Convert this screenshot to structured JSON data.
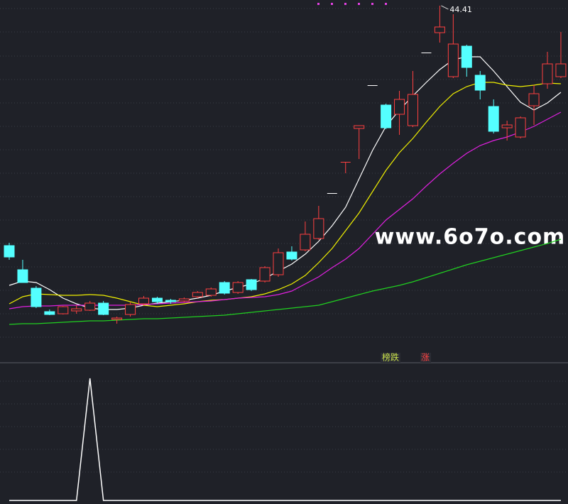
{
  "chart_data": [
    {
      "type": "candlestick",
      "high_label": "44.41",
      "watermark": "www.6o7o.com",
      "annotations": [
        "榜跌",
        "涨"
      ],
      "color_up": "#ff4040",
      "color_down": "#54ffff",
      "ylim": [
        19.31,
        44.81
      ],
      "open": [
        27.51,
        25.81,
        24.51,
        22.86,
        22.71,
        22.91,
        22.96,
        23.46,
        22.31,
        22.66,
        23.41,
        23.81,
        23.66,
        23.61,
        23.91,
        24.01,
        24.91,
        24.21,
        25.11,
        25.01,
        25.46,
        27.06,
        27.21,
        28.01,
        31.21,
        33.41,
        35.76,
        38.81,
        37.41,
        36.76,
        35.96,
        41.11,
        42.51,
        39.41,
        41.56,
        39.51,
        37.31,
        35.81,
        35.16,
        37.36,
        38.91,
        39.41
      ],
      "high": [
        27.71,
        26.51,
        24.66,
        23.01,
        23.26,
        23.31,
        23.61,
        23.61,
        22.51,
        23.51,
        23.96,
        23.91,
        23.76,
        23.86,
        24.31,
        24.56,
        25.01,
        25.01,
        25.16,
        26.06,
        27.31,
        27.46,
        29.21,
        30.31,
        31.21,
        33.41,
        35.96,
        38.81,
        37.51,
        38.41,
        39.81,
        41.11,
        44.41,
        43.81,
        41.66,
        39.81,
        37.81,
        36.31,
        36.61,
        38.81,
        41.16,
        42.56
      ],
      "low": [
        26.51,
        24.91,
        23.11,
        22.61,
        22.66,
        22.71,
        22.91,
        22.61,
        22.01,
        22.51,
        23.31,
        23.41,
        23.41,
        23.51,
        23.81,
        23.91,
        24.06,
        24.11,
        24.31,
        24.91,
        25.31,
        26.46,
        27.11,
        27.91,
        31.21,
        32.61,
        33.61,
        38.81,
        35.71,
        35.31,
        35.86,
        41.11,
        41.81,
        39.31,
        39.41,
        37.81,
        35.41,
        34.91,
        35.06,
        36.01,
        38.56,
        39.31
      ],
      "close": [
        26.71,
        24.91,
        23.21,
        22.66,
        23.21,
        23.06,
        23.46,
        22.66,
        22.41,
        23.36,
        23.81,
        23.56,
        23.56,
        23.76,
        24.21,
        24.46,
        24.16,
        24.91,
        24.41,
        25.96,
        27.01,
        26.56,
        28.31,
        29.41,
        31.21,
        33.41,
        35.96,
        38.81,
        35.81,
        37.81,
        38.16,
        41.11,
        42.91,
        41.71,
        40.06,
        38.46,
        35.56,
        36.01,
        36.51,
        38.21,
        40.31,
        40.31
      ],
      "series": [
        {
          "color": "#ffffff",
          "values": [
            24.71,
            25.01,
            24.91,
            24.41,
            23.81,
            23.41,
            23.11,
            23.01,
            23.01,
            23.11,
            23.31,
            23.46,
            23.56,
            23.66,
            23.81,
            24.01,
            24.31,
            24.56,
            24.81,
            25.21,
            25.71,
            26.21,
            26.91,
            27.81,
            28.91,
            30.21,
            32.21,
            34.21,
            35.91,
            37.06,
            38.06,
            39.01,
            39.91,
            40.61,
            40.81,
            40.81,
            39.81,
            38.71,
            37.61,
            37.06,
            37.56,
            38.31
          ]
        },
        {
          "color": "#f0f000",
          "values": [
            23.41,
            23.91,
            24.11,
            24.06,
            24.01,
            24.01,
            24.06,
            24.01,
            23.81,
            23.56,
            23.31,
            23.21,
            23.31,
            23.41,
            23.56,
            23.66,
            23.71,
            23.81,
            23.91,
            24.11,
            24.41,
            24.81,
            25.41,
            26.31,
            27.31,
            28.56,
            29.81,
            31.31,
            32.81,
            34.06,
            35.06,
            36.21,
            37.31,
            38.21,
            38.71,
            39.01,
            39.01,
            38.81,
            38.71,
            38.81,
            38.96,
            38.91
          ]
        },
        {
          "color": "#e020e0",
          "values": [
            23.06,
            23.21,
            23.26,
            23.26,
            23.31,
            23.31,
            23.31,
            23.31,
            23.31,
            23.31,
            23.36,
            23.41,
            23.46,
            23.51,
            23.56,
            23.61,
            23.71,
            23.81,
            23.86,
            23.91,
            24.06,
            24.31,
            24.81,
            25.31,
            25.96,
            26.56,
            27.31,
            28.31,
            29.31,
            30.06,
            30.81,
            31.71,
            32.56,
            33.31,
            34.01,
            34.56,
            34.91,
            35.16,
            35.51,
            35.91,
            36.41,
            36.91
          ]
        },
        {
          "color": "#20d020",
          "values": [
            21.96,
            22.01,
            22.01,
            22.06,
            22.11,
            22.16,
            22.21,
            22.21,
            22.26,
            22.31,
            22.36,
            22.36,
            22.41,
            22.46,
            22.51,
            22.56,
            22.61,
            22.71,
            22.81,
            22.91,
            23.01,
            23.11,
            23.21,
            23.31,
            23.56,
            23.81,
            24.06,
            24.31,
            24.51,
            24.71,
            24.96,
            25.26,
            25.56,
            25.86,
            26.16,
            26.41,
            26.66,
            26.91,
            27.16,
            27.41,
            27.66,
            27.96
          ]
        }
      ]
    },
    {
      "type": "line",
      "color": "#ffffff",
      "ylim": [
        0,
        1
      ],
      "values": [
        0,
        0,
        0,
        0,
        0,
        0,
        1,
        0,
        0,
        0,
        0,
        0,
        0,
        0,
        0,
        0,
        0,
        0,
        0,
        0,
        0,
        0,
        0,
        0,
        0,
        0,
        0,
        0,
        0,
        0,
        0,
        0,
        0,
        0,
        0,
        0,
        0,
        0,
        0,
        0,
        0,
        0
      ]
    }
  ]
}
